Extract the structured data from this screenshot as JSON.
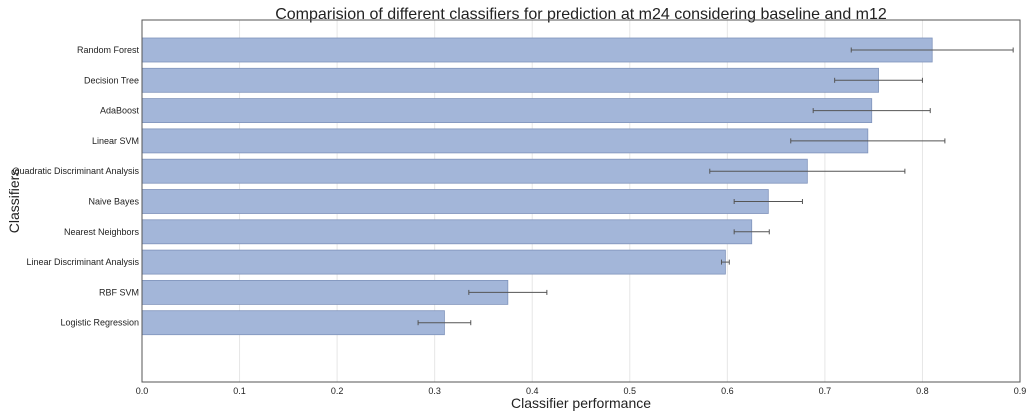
{
  "chart_data": {
    "type": "bar",
    "orientation": "horizontal",
    "title": "Comparision of different classifiers for prediction at m24 considering baseline and m12",
    "xlabel": "Classifier performance",
    "ylabel": "Classifiers",
    "xlim": [
      0,
      0.9
    ],
    "xticks": [
      "0.0",
      "0.1",
      "0.2",
      "0.3",
      "0.4",
      "0.5",
      "0.6",
      "0.7",
      "0.8",
      "0.9"
    ],
    "grid": true,
    "bar_color": "#a3b6d9",
    "bar_edge_color": "#7f93bb",
    "categories": [
      "Random Forest",
      "Decision Tree",
      "AdaBoost",
      "Linear SVM",
      "Quadratic Discriminant Analysis",
      "Naive Bayes",
      "Nearest Neighbors",
      "Linear Discriminant Analysis",
      "RBF SVM",
      "Logistic Regression"
    ],
    "values": [
      0.81,
      0.755,
      0.748,
      0.744,
      0.682,
      0.642,
      0.625,
      0.598,
      0.375,
      0.31
    ],
    "errors": [
      0.083,
      0.045,
      0.06,
      0.079,
      0.1,
      0.035,
      0.018,
      0.004,
      0.04,
      0.027
    ]
  }
}
